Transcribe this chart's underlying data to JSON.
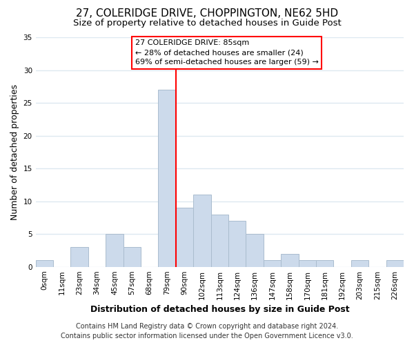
{
  "title": "27, COLERIDGE DRIVE, CHOPPINGTON, NE62 5HD",
  "subtitle": "Size of property relative to detached houses in Guide Post",
  "bar_labels": [
    "0sqm",
    "11sqm",
    "23sqm",
    "34sqm",
    "45sqm",
    "57sqm",
    "68sqm",
    "79sqm",
    "90sqm",
    "102sqm",
    "113sqm",
    "124sqm",
    "136sqm",
    "147sqm",
    "158sqm",
    "170sqm",
    "181sqm",
    "192sqm",
    "203sqm",
    "215sqm",
    "226sqm"
  ],
  "bar_heights": [
    1,
    0,
    3,
    0,
    5,
    3,
    0,
    27,
    9,
    11,
    8,
    7,
    5,
    1,
    2,
    1,
    1,
    0,
    1,
    0,
    1
  ],
  "bar_color": "#ccdaeb",
  "bar_edge_color": "#aabcce",
  "ylabel": "Number of detached properties",
  "xlabel": "Distribution of detached houses by size in Guide Post",
  "ylim": [
    0,
    35
  ],
  "yticks": [
    0,
    5,
    10,
    15,
    20,
    25,
    30,
    35
  ],
  "vline_x": 7.5,
  "vline_color": "red",
  "vline_linewidth": 1.5,
  "annotation_title": "27 COLERIDGE DRIVE: 85sqm",
  "annotation_line2": "← 28% of detached houses are smaller (24)",
  "annotation_line3": "69% of semi-detached houses are larger (59) →",
  "annotation_box_edgecolor": "red",
  "annotation_box_facecolor": "white",
  "footer_line1": "Contains HM Land Registry data © Crown copyright and database right 2024.",
  "footer_line2": "Contains public sector information licensed under the Open Government Licence v3.0.",
  "background_color": "#ffffff",
  "grid_color": "#dde8f0",
  "title_fontsize": 11,
  "subtitle_fontsize": 9.5,
  "axis_label_fontsize": 9,
  "tick_fontsize": 7.5,
  "annotation_fontsize": 8,
  "footer_fontsize": 7
}
